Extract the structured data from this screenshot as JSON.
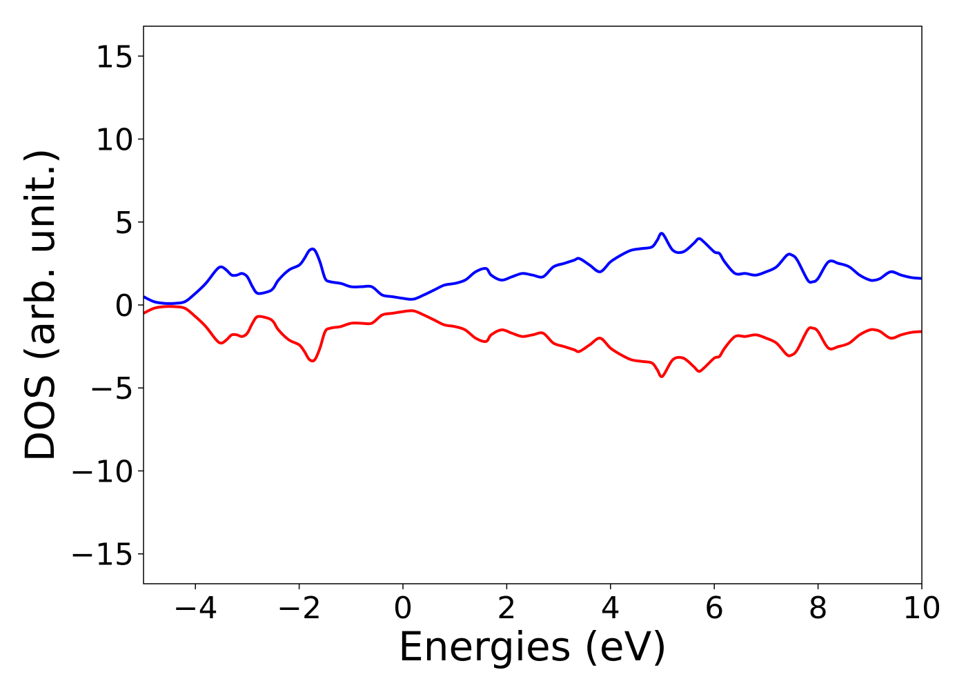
{
  "chart_data": {
    "type": "line",
    "title": "",
    "xlabel": "Energies (eV)",
    "ylabel": "DOS (arb. unit.)",
    "xlim": [
      -5,
      10
    ],
    "ylim": [
      -16.8,
      16.8
    ],
    "xticks": [
      -4,
      -2,
      0,
      2,
      4,
      6,
      8,
      10
    ],
    "xtick_labels": [
      "−4",
      "−2",
      "0",
      "2",
      "4",
      "6",
      "8",
      "10"
    ],
    "yticks": [
      -15,
      -10,
      -5,
      0,
      5,
      10,
      15
    ],
    "ytick_labels": [
      "−15",
      "−10",
      "−5",
      "0",
      "5",
      "10",
      "15"
    ],
    "grid": false,
    "legend": "none",
    "series": [
      {
        "color": "#0000ff",
        "x": [
          -5,
          -4.8,
          -4.6,
          -4.4,
          -4.2,
          -4.0,
          -3.8,
          -3.6,
          -3.5,
          -3.4,
          -3.3,
          -3.2,
          -3.1,
          -3.0,
          -2.9,
          -2.8,
          -2.6,
          -2.5,
          -2.4,
          -2.2,
          -2.0,
          -1.9,
          -1.8,
          -1.7,
          -1.6,
          -1.5,
          -1.4,
          -1.2,
          -1.0,
          -0.8,
          -0.6,
          -0.4,
          -0.2,
          0,
          0.2,
          0.4,
          0.6,
          0.8,
          1.0,
          1.2,
          1.4,
          1.6,
          1.7,
          1.9,
          2.1,
          2.3,
          2.5,
          2.7,
          2.9,
          3.1,
          3.3,
          3.4,
          3.6,
          3.8,
          4.0,
          4.2,
          4.4,
          4.6,
          4.8,
          4.9,
          5.0,
          5.2,
          5.4,
          5.6,
          5.7,
          5.8,
          6.0,
          6.1,
          6.2,
          6.4,
          6.6,
          6.8,
          7.0,
          7.2,
          7.4,
          7.5,
          7.6,
          7.8,
          7.9,
          8.0,
          8.2,
          8.4,
          8.6,
          8.8,
          9.0,
          9.1,
          9.2,
          9.4,
          9.6,
          9.8,
          10.0
        ],
        "y": [
          0.5,
          0.2,
          0.1,
          0.1,
          0.2,
          0.7,
          1.3,
          2.1,
          2.3,
          2.1,
          1.8,
          1.8,
          1.9,
          1.7,
          1.1,
          0.7,
          0.8,
          1.0,
          1.5,
          2.1,
          2.4,
          2.8,
          3.3,
          3.3,
          2.6,
          1.6,
          1.4,
          1.3,
          1.1,
          1.1,
          1.1,
          0.6,
          0.5,
          0.4,
          0.35,
          0.6,
          0.9,
          1.2,
          1.3,
          1.5,
          2.0,
          2.2,
          1.8,
          1.5,
          1.7,
          1.9,
          1.8,
          1.7,
          2.3,
          2.5,
          2.7,
          2.8,
          2.4,
          2.0,
          2.6,
          3.0,
          3.3,
          3.4,
          3.5,
          3.9,
          4.3,
          3.3,
          3.2,
          3.7,
          4.0,
          3.8,
          3.2,
          3.1,
          2.6,
          1.9,
          1.9,
          1.8,
          2.0,
          2.3,
          3.0,
          3.0,
          2.7,
          1.5,
          1.4,
          1.6,
          2.6,
          2.5,
          2.3,
          1.8,
          1.5,
          1.5,
          1.6,
          2.0,
          1.8,
          1.65,
          1.6
        ]
      },
      {
        "color": "#ff0000",
        "x": [
          -5,
          -4.8,
          -4.6,
          -4.4,
          -4.2,
          -4.0,
          -3.8,
          -3.6,
          -3.5,
          -3.4,
          -3.3,
          -3.2,
          -3.1,
          -3.0,
          -2.9,
          -2.8,
          -2.6,
          -2.5,
          -2.4,
          -2.2,
          -2.0,
          -1.9,
          -1.8,
          -1.7,
          -1.6,
          -1.5,
          -1.4,
          -1.2,
          -1.0,
          -0.8,
          -0.6,
          -0.4,
          -0.2,
          0,
          0.2,
          0.4,
          0.6,
          0.8,
          1.0,
          1.2,
          1.4,
          1.6,
          1.7,
          1.9,
          2.1,
          2.3,
          2.5,
          2.7,
          2.9,
          3.1,
          3.3,
          3.4,
          3.6,
          3.8,
          4.0,
          4.2,
          4.4,
          4.6,
          4.8,
          4.9,
          5.0,
          5.2,
          5.4,
          5.6,
          5.7,
          5.8,
          6.0,
          6.1,
          6.2,
          6.4,
          6.6,
          6.8,
          7.0,
          7.2,
          7.4,
          7.5,
          7.6,
          7.8,
          7.9,
          8.0,
          8.2,
          8.4,
          8.6,
          8.8,
          9.0,
          9.1,
          9.2,
          9.4,
          9.6,
          9.8,
          10.0
        ],
        "y": [
          -0.5,
          -0.2,
          -0.1,
          -0.1,
          -0.2,
          -0.7,
          -1.3,
          -2.1,
          -2.3,
          -2.1,
          -1.8,
          -1.8,
          -1.9,
          -1.7,
          -1.1,
          -0.7,
          -0.8,
          -1.0,
          -1.5,
          -2.1,
          -2.4,
          -2.8,
          -3.3,
          -3.3,
          -2.6,
          -1.6,
          -1.4,
          -1.3,
          -1.1,
          -1.1,
          -1.1,
          -0.6,
          -0.5,
          -0.4,
          -0.35,
          -0.6,
          -0.9,
          -1.2,
          -1.3,
          -1.5,
          -2.0,
          -2.2,
          -1.8,
          -1.5,
          -1.7,
          -1.9,
          -1.8,
          -1.7,
          -2.3,
          -2.5,
          -2.7,
          -2.8,
          -2.4,
          -2.0,
          -2.6,
          -3.0,
          -3.3,
          -3.4,
          -3.5,
          -3.9,
          -4.3,
          -3.3,
          -3.2,
          -3.7,
          -4.0,
          -3.8,
          -3.2,
          -3.1,
          -2.6,
          -1.9,
          -1.9,
          -1.8,
          -2.0,
          -2.3,
          -3.0,
          -3.0,
          -2.7,
          -1.5,
          -1.4,
          -1.6,
          -2.6,
          -2.5,
          -2.3,
          -1.8,
          -1.5,
          -1.5,
          -1.6,
          -2.0,
          -1.8,
          -1.65,
          -1.6
        ]
      }
    ]
  }
}
